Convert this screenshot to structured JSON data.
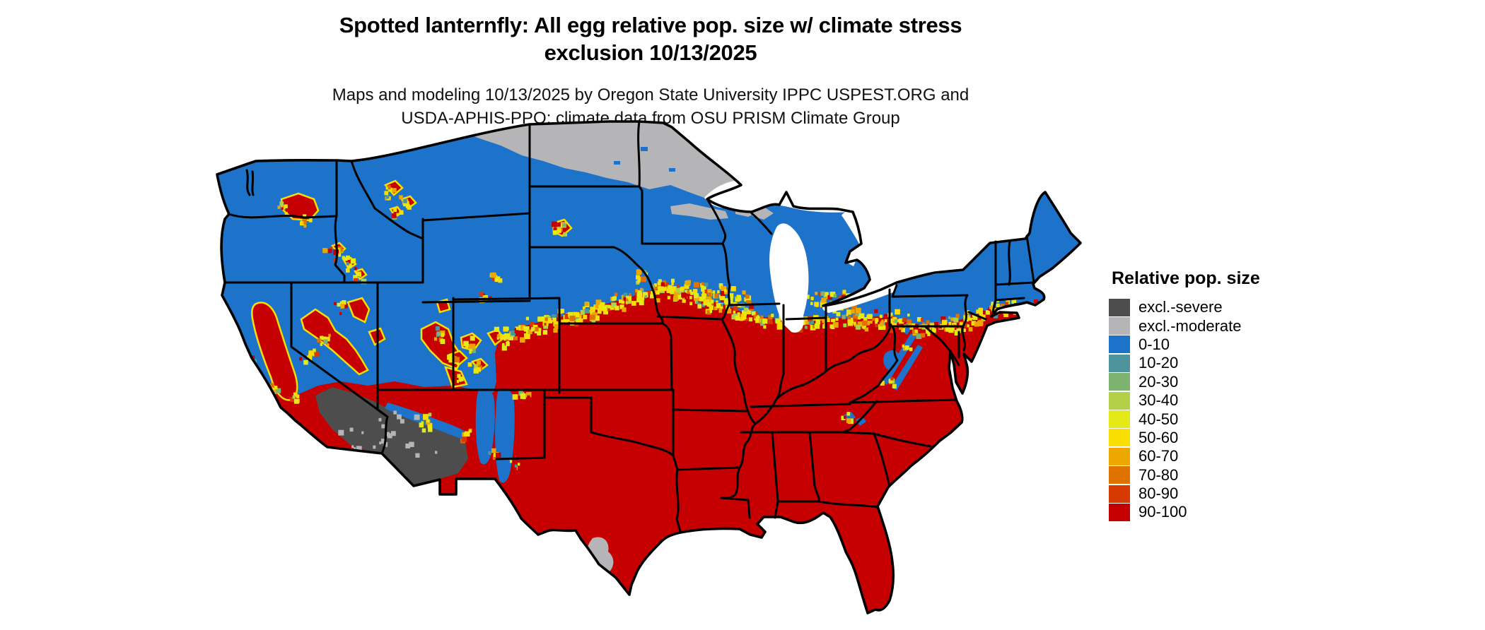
{
  "title": {
    "line1": "Spotted lanternfly: All egg relative pop. size w/ climate stress",
    "line2": "exclusion 10/13/2025"
  },
  "subtitle": {
    "line1": "Maps and modeling 10/13/2025 by Oregon State University IPPC USPEST.ORG and",
    "line2": "USDA-APHIS-PPQ; climate data from OSU PRISM Climate Group"
  },
  "legend": {
    "title": "Relative pop. size",
    "items": [
      {
        "label": "excl.-severe",
        "color": "#4d4d4d"
      },
      {
        "label": "excl.-moderate",
        "color": "#b5b5b7"
      },
      {
        "label": "0-10",
        "color": "#1d72c9"
      },
      {
        "label": "10-20",
        "color": "#4d949c"
      },
      {
        "label": "20-30",
        "color": "#7db36f"
      },
      {
        "label": "30-40",
        "color": "#b2d148"
      },
      {
        "label": "40-50",
        "color": "#e3ea18"
      },
      {
        "label": "50-60",
        "color": "#f9df00"
      },
      {
        "label": "60-70",
        "color": "#eda800"
      },
      {
        "label": "70-80",
        "color": "#e07200"
      },
      {
        "label": "80-90",
        "color": "#d63a00"
      },
      {
        "label": "90-100",
        "color": "#c60000"
      }
    ]
  },
  "map": {
    "area": "Continental United States",
    "water_color": "#ffffff",
    "state_border_color": "#000000"
  }
}
